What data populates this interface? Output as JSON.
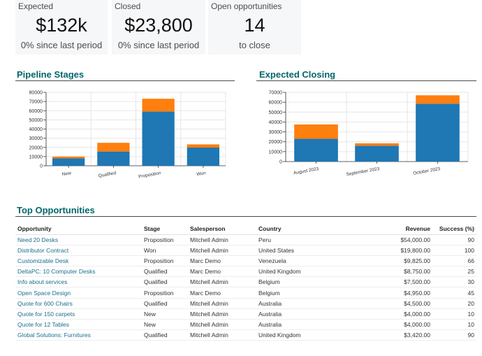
{
  "kpis": [
    {
      "label": "Expected",
      "value": "$132k",
      "sub": "0% since last period"
    },
    {
      "label": "Closed",
      "value": "$23,800",
      "sub": "0% since last period"
    },
    {
      "label": "Open opportunities",
      "value": "14",
      "sub": "to close"
    }
  ],
  "sections": {
    "pipeline": "Pipeline Stages",
    "closing": "Expected Closing",
    "top": "Top Opportunities"
  },
  "colors": {
    "series_a": "#1f77b4",
    "series_b": "#ff7f0e",
    "accent": "#01666b"
  },
  "chart_data": [
    {
      "type": "bar",
      "stacked": true,
      "categories": [
        "New",
        "Qualified",
        "Proposition",
        "Won"
      ],
      "series": [
        {
          "values": [
            8000,
            15500,
            59000,
            19800
          ]
        },
        {
          "values": [
            2000,
            9500,
            14000,
            3500
          ]
        }
      ],
      "ylim": [
        0,
        80000
      ],
      "yticks": [
        "0",
        "10000",
        "20000",
        "30000",
        "40000",
        "50000",
        "60000",
        "70000",
        "80000"
      ],
      "grid": true
    },
    {
      "type": "bar",
      "stacked": true,
      "categories": [
        "August 2023",
        "September 2023",
        "October 2023"
      ],
      "series": [
        {
          "values": [
            23000,
            16000,
            58500
          ]
        },
        {
          "values": [
            14500,
            2500,
            8500
          ]
        }
      ],
      "ylim": [
        0,
        70000
      ],
      "yticks": [
        "0",
        "10000",
        "20000",
        "30000",
        "40000",
        "50000",
        "60000",
        "70000"
      ],
      "grid": true
    }
  ],
  "table": {
    "headers": {
      "opportunity": "Opportunity",
      "stage": "Stage",
      "salesperson": "Salesperson",
      "country": "Country",
      "revenue": "Revenue",
      "success": "Success (%)"
    },
    "rows": [
      {
        "opportunity": "Need 20 Desks",
        "stage": "Proposition",
        "salesperson": "Mitchell Admin",
        "country": "Peru",
        "revenue": "$54,000.00",
        "success": "90"
      },
      {
        "opportunity": "Distributor Contract",
        "stage": "Won",
        "salesperson": "Mitchell Admin",
        "country": "United States",
        "revenue": "$19,800.00",
        "success": "100"
      },
      {
        "opportunity": "Customizable Desk",
        "stage": "Proposition",
        "salesperson": "Marc Demo",
        "country": "Venezuela",
        "revenue": "$9,825.00",
        "success": "66"
      },
      {
        "opportunity": "DeltaPC: 10 Computer Desks",
        "stage": "Qualified",
        "salesperson": "Marc Demo",
        "country": "United Kingdom",
        "revenue": "$8,750.00",
        "success": "25"
      },
      {
        "opportunity": "Info about services",
        "stage": "Qualified",
        "salesperson": "Mitchell Admin",
        "country": "Belgium",
        "revenue": "$7,500.00",
        "success": "30"
      },
      {
        "opportunity": "Open Space Design",
        "stage": "Proposition",
        "salesperson": "Marc Demo",
        "country": "Belgium",
        "revenue": "$4,950.00",
        "success": "45"
      },
      {
        "opportunity": "Quote for 600 Chairs",
        "stage": "Qualified",
        "salesperson": "Mitchell Admin",
        "country": "Australia",
        "revenue": "$4,500.00",
        "success": "20"
      },
      {
        "opportunity": "Quote for 150 carpets",
        "stage": "New",
        "salesperson": "Mitchell Admin",
        "country": "Australia",
        "revenue": "$4,000.00",
        "success": "10"
      },
      {
        "opportunity": "Quote for 12 Tables",
        "stage": "New",
        "salesperson": "Mitchell Admin",
        "country": "Australia",
        "revenue": "$4,000.00",
        "success": "10"
      },
      {
        "opportunity": "Global Solutions: Furnitures",
        "stage": "Qualified",
        "salesperson": "Mitchell Admin",
        "country": "United Kingdom",
        "revenue": "$3,420.00",
        "success": "90"
      }
    ]
  }
}
